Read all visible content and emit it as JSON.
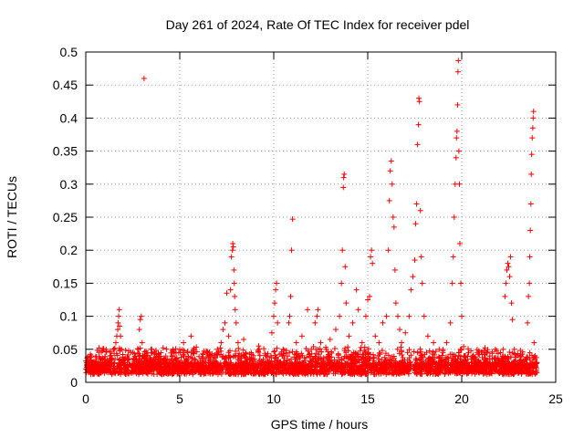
{
  "chart_data": {
    "type": "scatter",
    "title": "Day 261 of 2024, Rate Of TEC Index for receiver pdel",
    "xlabel": "GPS time / hours",
    "ylabel": "ROTI / TECUs",
    "xlim": [
      0,
      25
    ],
    "ylim": [
      0,
      0.5
    ],
    "xticks": [
      0,
      5,
      10,
      15,
      20,
      25
    ],
    "xtick_labels": [
      "0",
      "5",
      "10",
      "15",
      "20",
      "25"
    ],
    "yticks": [
      0,
      0.05,
      0.1,
      0.15,
      0.2,
      0.25,
      0.3,
      0.35,
      0.4,
      0.45,
      0.5
    ],
    "ytick_labels": [
      "0",
      "0.05",
      "0.1",
      "0.15",
      "0.2",
      "0.25",
      "0.3",
      "0.35",
      "0.4",
      "0.45",
      "0.5"
    ],
    "grid": true,
    "marker": "plus",
    "marker_color": "#ff0000",
    "series": [
      {
        "name": "ROTI",
        "points": [
          [
            0.1,
            0.03
          ],
          [
            0.3,
            0.04
          ],
          [
            0.5,
            0.025
          ],
          [
            0.8,
            0.035
          ],
          [
            1.0,
            0.03
          ],
          [
            1.3,
            0.04
          ],
          [
            1.5,
            0.05
          ],
          [
            1.6,
            0.06
          ],
          [
            1.65,
            0.07
          ],
          [
            1.7,
            0.08
          ],
          [
            1.72,
            0.09
          ],
          [
            1.75,
            0.1
          ],
          [
            1.78,
            0.11
          ],
          [
            1.8,
            0.085
          ],
          [
            1.85,
            0.07
          ],
          [
            1.9,
            0.05
          ],
          [
            2.2,
            0.035
          ],
          [
            2.5,
            0.045
          ],
          [
            2.8,
            0.05
          ],
          [
            2.85,
            0.08
          ],
          [
            2.9,
            0.095
          ],
          [
            2.95,
            0.1
          ],
          [
            3.0,
            0.06
          ],
          [
            3.1,
            0.46
          ],
          [
            3.3,
            0.04
          ],
          [
            3.6,
            0.035
          ],
          [
            4.0,
            0.045
          ],
          [
            4.3,
            0.03
          ],
          [
            4.6,
            0.04
          ],
          [
            5.0,
            0.05
          ],
          [
            5.2,
            0.06
          ],
          [
            5.4,
            0.045
          ],
          [
            5.6,
            0.07
          ],
          [
            5.8,
            0.035
          ],
          [
            6.2,
            0.03
          ],
          [
            6.6,
            0.04
          ],
          [
            7.0,
            0.05
          ],
          [
            7.2,
            0.06
          ],
          [
            7.3,
            0.08
          ],
          [
            7.4,
            0.09
          ],
          [
            7.5,
            0.135
          ],
          [
            7.6,
            0.07
          ],
          [
            7.7,
            0.14
          ],
          [
            7.75,
            0.19
          ],
          [
            7.8,
            0.2
          ],
          [
            7.82,
            0.21
          ],
          [
            7.85,
            0.205
          ],
          [
            7.88,
            0.17
          ],
          [
            7.9,
            0.15
          ],
          [
            7.92,
            0.13
          ],
          [
            7.95,
            0.11
          ],
          [
            8.0,
            0.09
          ],
          [
            8.1,
            0.06
          ],
          [
            8.4,
            0.065
          ],
          [
            8.8,
            0.045
          ],
          [
            9.2,
            0.055
          ],
          [
            9.6,
            0.04
          ],
          [
            9.9,
            0.075
          ],
          [
            10.0,
            0.1
          ],
          [
            10.05,
            0.12
          ],
          [
            10.1,
            0.14
          ],
          [
            10.15,
            0.15
          ],
          [
            10.2,
            0.09
          ],
          [
            10.5,
            0.05
          ],
          [
            10.8,
            0.09
          ],
          [
            10.85,
            0.1
          ],
          [
            10.9,
            0.13
          ],
          [
            10.95,
            0.2
          ],
          [
            11.0,
            0.247
          ],
          [
            11.2,
            0.06
          ],
          [
            11.5,
            0.07
          ],
          [
            11.8,
            0.11
          ],
          [
            12.0,
            0.05
          ],
          [
            12.2,
            0.09
          ],
          [
            12.3,
            0.1
          ],
          [
            12.35,
            0.11
          ],
          [
            12.5,
            0.06
          ],
          [
            12.8,
            0.05
          ],
          [
            13.0,
            0.065
          ],
          [
            13.3,
            0.08
          ],
          [
            13.5,
            0.1
          ],
          [
            13.6,
            0.15
          ],
          [
            13.65,
            0.2
          ],
          [
            13.7,
            0.295
          ],
          [
            13.72,
            0.31
          ],
          [
            13.75,
            0.315
          ],
          [
            13.8,
            0.175
          ],
          [
            13.85,
            0.12
          ],
          [
            14.0,
            0.07
          ],
          [
            14.2,
            0.09
          ],
          [
            14.4,
            0.14
          ],
          [
            14.5,
            0.11
          ],
          [
            14.7,
            0.06
          ],
          [
            14.9,
            0.1
          ],
          [
            15.0,
            0.125
          ],
          [
            15.1,
            0.13
          ],
          [
            15.15,
            0.19
          ],
          [
            15.2,
            0.2
          ],
          [
            15.25,
            0.18
          ],
          [
            15.4,
            0.07
          ],
          [
            15.6,
            0.06
          ],
          [
            15.8,
            0.09
          ],
          [
            16.0,
            0.1
          ],
          [
            16.1,
            0.2
          ],
          [
            16.15,
            0.275
          ],
          [
            16.2,
            0.32
          ],
          [
            16.25,
            0.335
          ],
          [
            16.3,
            0.3
          ],
          [
            16.35,
            0.25
          ],
          [
            16.4,
            0.235
          ],
          [
            16.45,
            0.17
          ],
          [
            16.5,
            0.12
          ],
          [
            16.6,
            0.1
          ],
          [
            16.7,
            0.08
          ],
          [
            16.8,
            0.06
          ],
          [
            17.0,
            0.075
          ],
          [
            17.2,
            0.1
          ],
          [
            17.3,
            0.14
          ],
          [
            17.4,
            0.16
          ],
          [
            17.5,
            0.185
          ],
          [
            17.55,
            0.24
          ],
          [
            17.6,
            0.27
          ],
          [
            17.65,
            0.36
          ],
          [
            17.7,
            0.39
          ],
          [
            17.72,
            0.43
          ],
          [
            17.75,
            0.425
          ],
          [
            17.8,
            0.26
          ],
          [
            17.85,
            0.19
          ],
          [
            17.9,
            0.15
          ],
          [
            18.0,
            0.1
          ],
          [
            18.2,
            0.07
          ],
          [
            18.5,
            0.06
          ],
          [
            18.8,
            0.05
          ],
          [
            19.0,
            0.045
          ],
          [
            19.2,
            0.06
          ],
          [
            19.4,
            0.09
          ],
          [
            19.5,
            0.15
          ],
          [
            19.55,
            0.19
          ],
          [
            19.6,
            0.25
          ],
          [
            19.65,
            0.3
          ],
          [
            19.7,
            0.34
          ],
          [
            19.72,
            0.37
          ],
          [
            19.75,
            0.38
          ],
          [
            19.78,
            0.42
          ],
          [
            19.8,
            0.47
          ],
          [
            19.82,
            0.487
          ],
          [
            19.85,
            0.35
          ],
          [
            19.88,
            0.3
          ],
          [
            19.9,
            0.21
          ],
          [
            19.95,
            0.15
          ],
          [
            20.0,
            0.1
          ],
          [
            20.2,
            0.04
          ],
          [
            20.5,
            0.035
          ],
          [
            20.8,
            0.025
          ],
          [
            21.2,
            0.03
          ],
          [
            21.6,
            0.025
          ],
          [
            22.0,
            0.03
          ],
          [
            22.2,
            0.05
          ],
          [
            22.3,
            0.13
          ],
          [
            22.35,
            0.15
          ],
          [
            22.4,
            0.17
          ],
          [
            22.45,
            0.18
          ],
          [
            22.5,
            0.175
          ],
          [
            22.55,
            0.16
          ],
          [
            22.6,
            0.19
          ],
          [
            22.65,
            0.12
          ],
          [
            22.7,
            0.095
          ],
          [
            22.8,
            0.05
          ],
          [
            23.0,
            0.04
          ],
          [
            23.2,
            0.03
          ],
          [
            23.4,
            0.035
          ],
          [
            23.5,
            0.09
          ],
          [
            23.55,
            0.13
          ],
          [
            23.6,
            0.15
          ],
          [
            23.62,
            0.19
          ],
          [
            23.65,
            0.23
          ],
          [
            23.68,
            0.27
          ],
          [
            23.7,
            0.315
          ],
          [
            23.72,
            0.345
          ],
          [
            23.75,
            0.37
          ],
          [
            23.78,
            0.385
          ],
          [
            23.8,
            0.4
          ],
          [
            23.82,
            0.41
          ],
          [
            23.85,
            0.06
          ],
          [
            23.9,
            0.04
          ],
          [
            24.0,
            0.03
          ]
        ]
      }
    ]
  }
}
